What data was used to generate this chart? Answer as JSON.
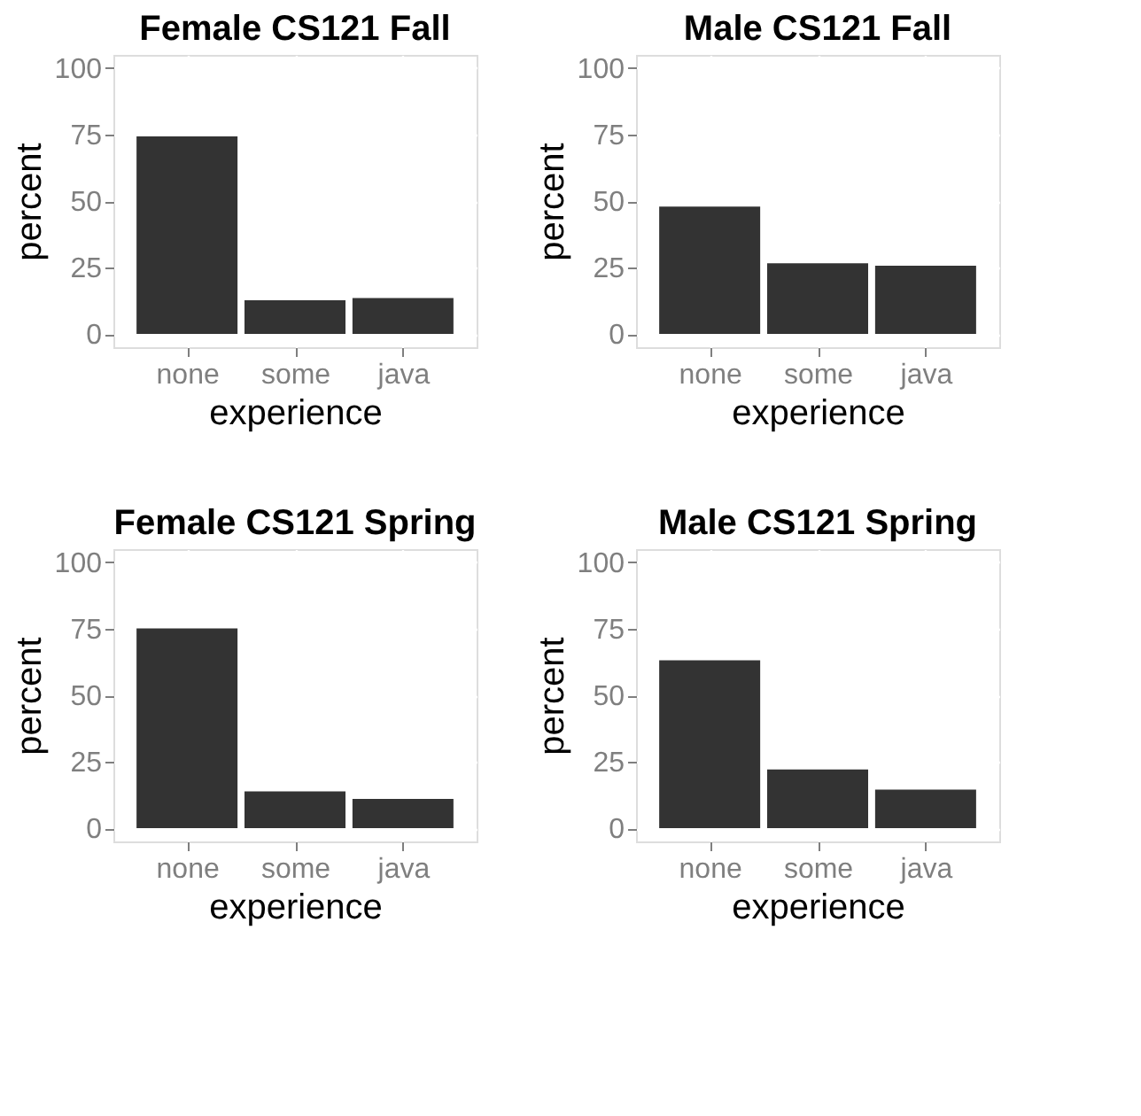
{
  "chart_data": [
    {
      "type": "bar",
      "title": "Female CS121 Fall",
      "xlabel": "experience",
      "ylabel": "percent",
      "categories": [
        "none",
        "some",
        "java"
      ],
      "values": [
        74.3,
        12.7,
        13.5
      ],
      "color": "#333333",
      "ylim": [
        -5,
        105
      ],
      "yticks": [
        0,
        25,
        50,
        75,
        100
      ],
      "grid": true
    },
    {
      "type": "bar",
      "title": "Male CS121 Fall",
      "xlabel": "experience",
      "ylabel": "percent",
      "categories": [
        "none",
        "some",
        "java"
      ],
      "values": [
        47.9,
        26.6,
        25.7
      ],
      "color": "#333333",
      "ylim": [
        -5,
        105
      ],
      "yticks": [
        0,
        25,
        50,
        75,
        100
      ],
      "grid": true
    },
    {
      "type": "bar",
      "title": "Female CS121 Spring",
      "xlabel": "experience",
      "ylabel": "percent",
      "categories": [
        "none",
        "some",
        "java"
      ],
      "values": [
        75.2,
        13.8,
        11.0
      ],
      "color": "#333333",
      "ylim": [
        -5,
        105
      ],
      "yticks": [
        0,
        25,
        50,
        75,
        100
      ],
      "grid": true
    },
    {
      "type": "bar",
      "title": "Male CS121 Spring",
      "xlabel": "experience",
      "ylabel": "percent",
      "categories": [
        "none",
        "some",
        "java"
      ],
      "values": [
        63.2,
        22.1,
        14.5
      ],
      "color": "#333333",
      "ylim": [
        -5,
        105
      ],
      "yticks": [
        0,
        25,
        50,
        75,
        100
      ],
      "grid": true
    }
  ]
}
